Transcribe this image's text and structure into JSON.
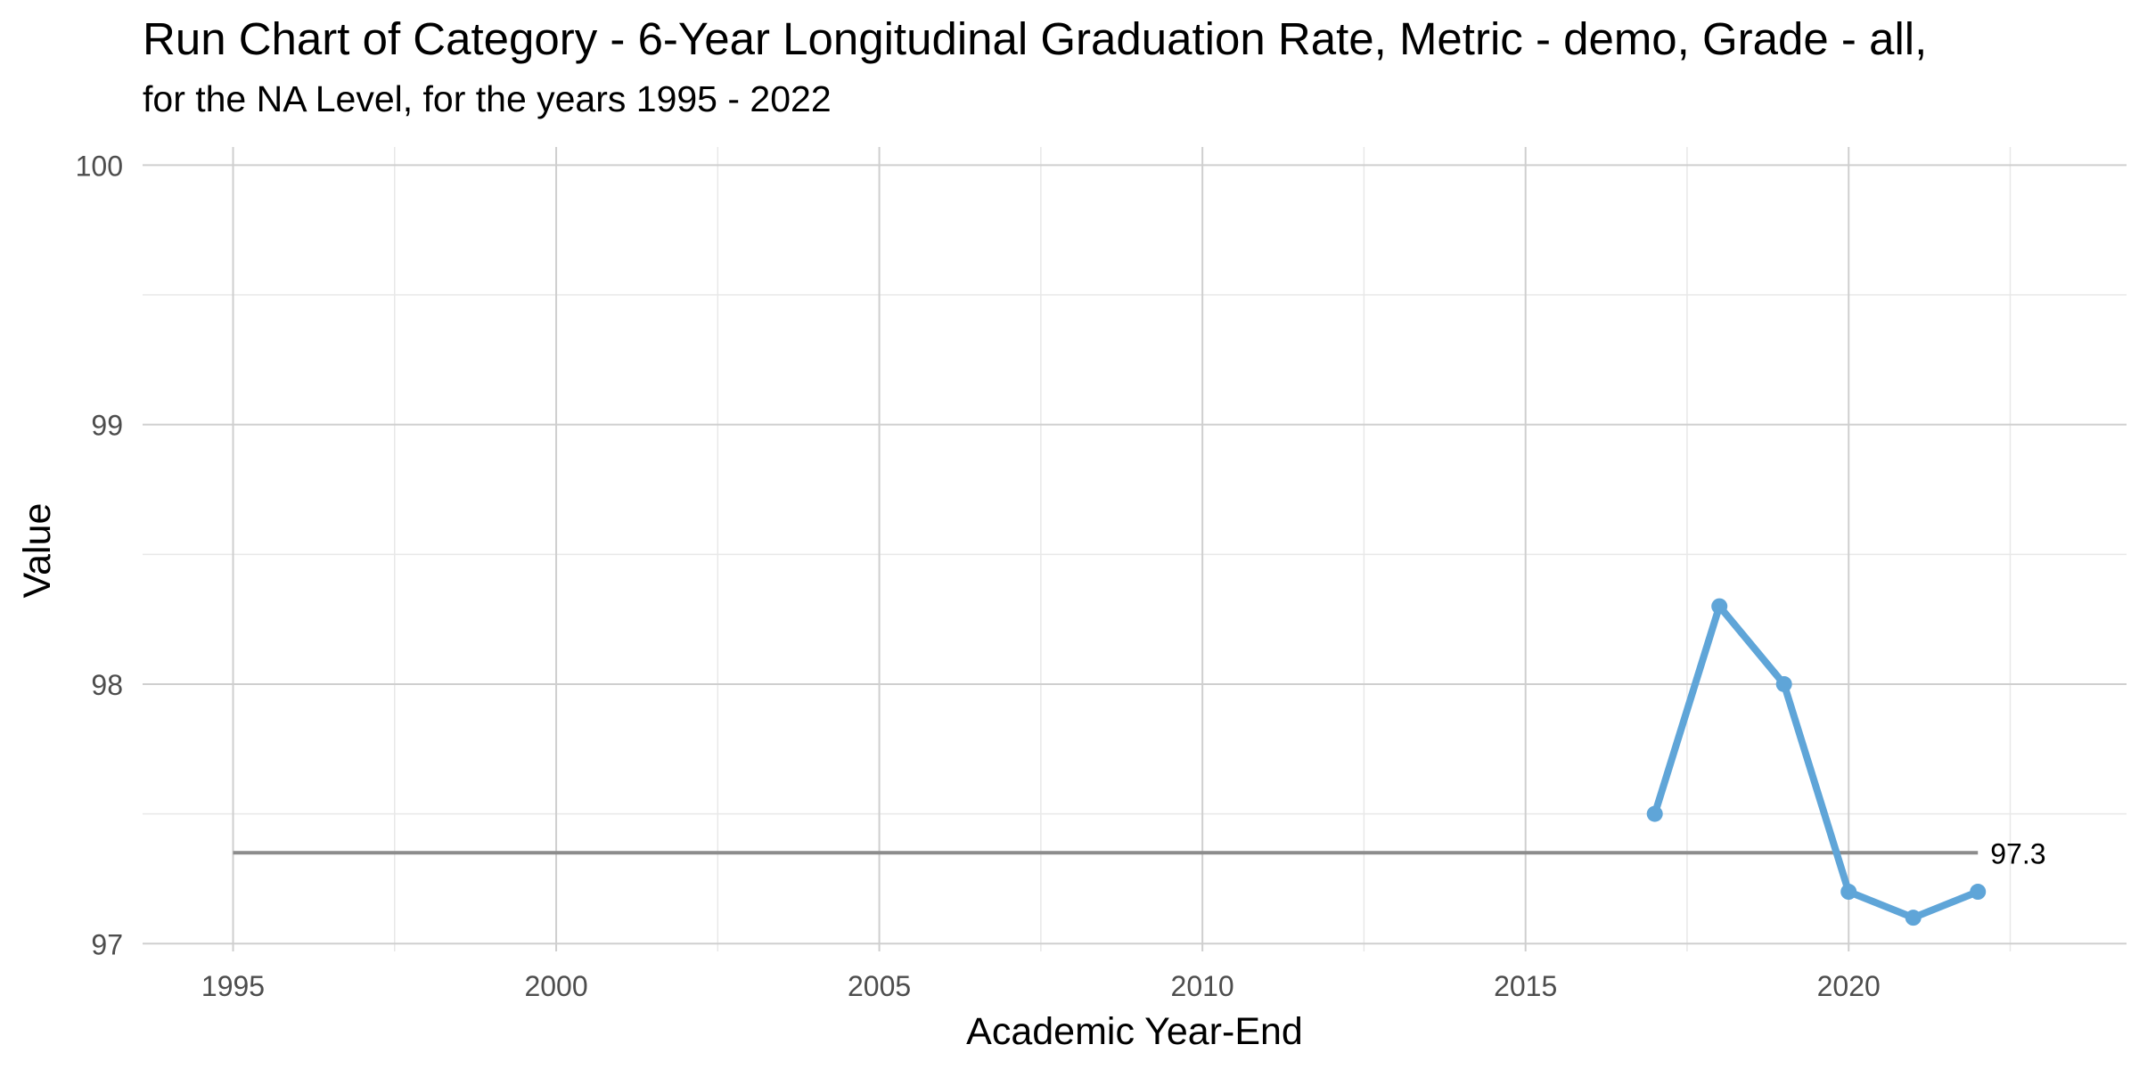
{
  "chart_data": {
    "type": "line",
    "title": "Run Chart of Category - 6-Year Longitudinal Graduation Rate, Metric - demo, Grade - all,",
    "subtitle": "for the NA Level, for the years 1995 - 2022",
    "xlabel": "Academic Year-End",
    "ylabel": "Value",
    "xlim": [
      1993.6,
      2024.3
    ],
    "ylim": [
      96.97,
      100.07
    ],
    "x_ticks": [
      1995,
      2000,
      2005,
      2010,
      2015,
      2020
    ],
    "y_ticks": [
      97,
      98,
      99,
      100
    ],
    "grid": true,
    "series": [
      {
        "x": [
          2017,
          2018,
          2019,
          2020,
          2021,
          2022
        ],
        "values": [
          97.5,
          98.3,
          98.0,
          97.2,
          97.1,
          97.2
        ],
        "color": "#5fa5d8"
      }
    ],
    "reference_line": {
      "value": 97.35,
      "x_start": 1995,
      "x_end": 2022,
      "label": "97.3",
      "color": "#8c8c8c"
    },
    "colors": {
      "major_grid": "#cfcfcf",
      "minor_grid": "#e8e8e8",
      "axis_text": "#4d4d4d"
    }
  }
}
